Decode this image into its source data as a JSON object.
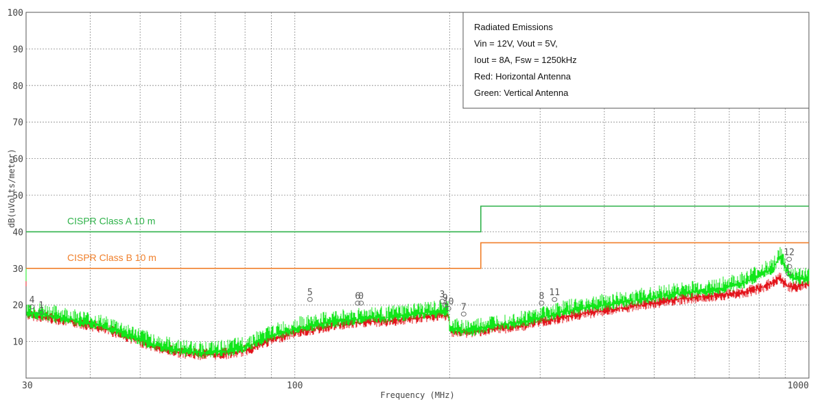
{
  "chart_data": {
    "type": "line",
    "xlabel": "Frequency (MHz)",
    "ylabel": "dB(uVolts/meter)",
    "x_scale": "log",
    "xlim": [
      30,
      1000
    ],
    "ylim": [
      0,
      100
    ],
    "x_ticks": [
      30,
      100,
      1000
    ],
    "x_tick_labels": [
      "30",
      "100",
      "1000"
    ],
    "y_ticks": [
      10,
      20,
      30,
      40,
      50,
      60,
      70,
      80,
      90,
      100
    ],
    "y_tick_labels": [
      "10",
      "20",
      "30",
      "40",
      "50",
      "60",
      "70",
      "80",
      "90",
      "100"
    ],
    "grid": true,
    "legend": {
      "placement": "top-right",
      "lines": [
        "Radiated Emissions",
        "Vin = 12V,  Vout = 5V,",
        "Iout = 8A,  Fsw = 1250kHz",
        "Red: Horizontal Antenna",
        "Green: Vertical Antenna"
      ]
    },
    "limits": [
      {
        "name": "CISPR  Class A  10 m",
        "color": "#2fb24a",
        "x": [
          30,
          230,
          230,
          1000
        ],
        "y": [
          40,
          40,
          47,
          47
        ]
      },
      {
        "name": "CISPR  Class B  10 m",
        "color": "#f07f2a",
        "x": [
          30,
          230,
          230,
          1000
        ],
        "y": [
          30,
          30,
          37,
          37
        ]
      }
    ],
    "series": [
      {
        "color": "#e3141b",
        "x": [
          30,
          35,
          40,
          45,
          50,
          55,
          60,
          65,
          70,
          75,
          80,
          85,
          90,
          100,
          110,
          120,
          130,
          140,
          150,
          160,
          170,
          180,
          190,
          199,
          200,
          210,
          220,
          230,
          250,
          280,
          300,
          330,
          360,
          400,
          450,
          500,
          550,
          600,
          650,
          700,
          750,
          800,
          850,
          880,
          900,
          920,
          950,
          1000
        ],
        "y": [
          17.5,
          16,
          14.5,
          12.5,
          10,
          8,
          7,
          6.5,
          6.5,
          6.8,
          7.5,
          9,
          10.5,
          12.5,
          13.5,
          14.5,
          15,
          15.5,
          15.5,
          16,
          16.3,
          16.8,
          17,
          17.2,
          13,
          12.5,
          12.5,
          13,
          13.5,
          14.5,
          15.5,
          16.5,
          17.5,
          18.5,
          19.5,
          20.5,
          21.5,
          22,
          22.5,
          23,
          23.5,
          24.5,
          26,
          27.5,
          25.5,
          25,
          25,
          26
        ]
      },
      {
        "color": "#11e61a",
        "x": [
          30,
          35,
          40,
          45,
          50,
          55,
          60,
          65,
          70,
          75,
          80,
          85,
          90,
          100,
          110,
          120,
          130,
          140,
          150,
          160,
          170,
          180,
          190,
          199,
          200,
          210,
          220,
          230,
          250,
          280,
          300,
          330,
          360,
          400,
          450,
          500,
          550,
          600,
          650,
          700,
          750,
          800,
          850,
          880,
          900,
          920,
          950,
          1000
        ],
        "y": [
          18,
          16.5,
          15,
          13,
          10.5,
          8.5,
          7.5,
          7,
          7,
          7.5,
          8.5,
          10,
          11.5,
          13.5,
          14.5,
          15.5,
          16,
          16.5,
          16.5,
          17,
          17.3,
          17.8,
          18,
          18.2,
          13.5,
          13,
          13,
          13.5,
          14.5,
          15.5,
          16.5,
          18,
          19,
          20,
          21,
          22,
          23,
          23.5,
          24,
          25,
          26,
          28,
          30,
          33,
          30,
          27.5,
          27,
          27
        ]
      }
    ],
    "markers": [
      {
        "label": "4",
        "x": 30.8,
        "y": 19.5
      },
      {
        "label": "1",
        "x": 32.1,
        "y": 18
      },
      {
        "label": "5",
        "x": 107,
        "y": 21.5
      },
      {
        "label": "6",
        "x": 132.5,
        "y": 20.5
      },
      {
        "label": "0",
        "x": 134.5,
        "y": 20.5
      },
      {
        "label": "3",
        "x": 193.5,
        "y": 21
      },
      {
        "label": "10",
        "x": 199,
        "y": 19
      },
      {
        "label": "9",
        "x": 196,
        "y": 20
      },
      {
        "label": "7",
        "x": 213,
        "y": 17.5
      },
      {
        "label": "8",
        "x": 302,
        "y": 20.5
      },
      {
        "label": "11",
        "x": 320,
        "y": 21.5
      },
      {
        "label": "12",
        "x": 915,
        "y": 32.5
      },
      {
        "label": "",
        "x": 916,
        "y": 30.5
      },
      {
        "label": "",
        "x": 913,
        "y": 28.5
      }
    ]
  }
}
